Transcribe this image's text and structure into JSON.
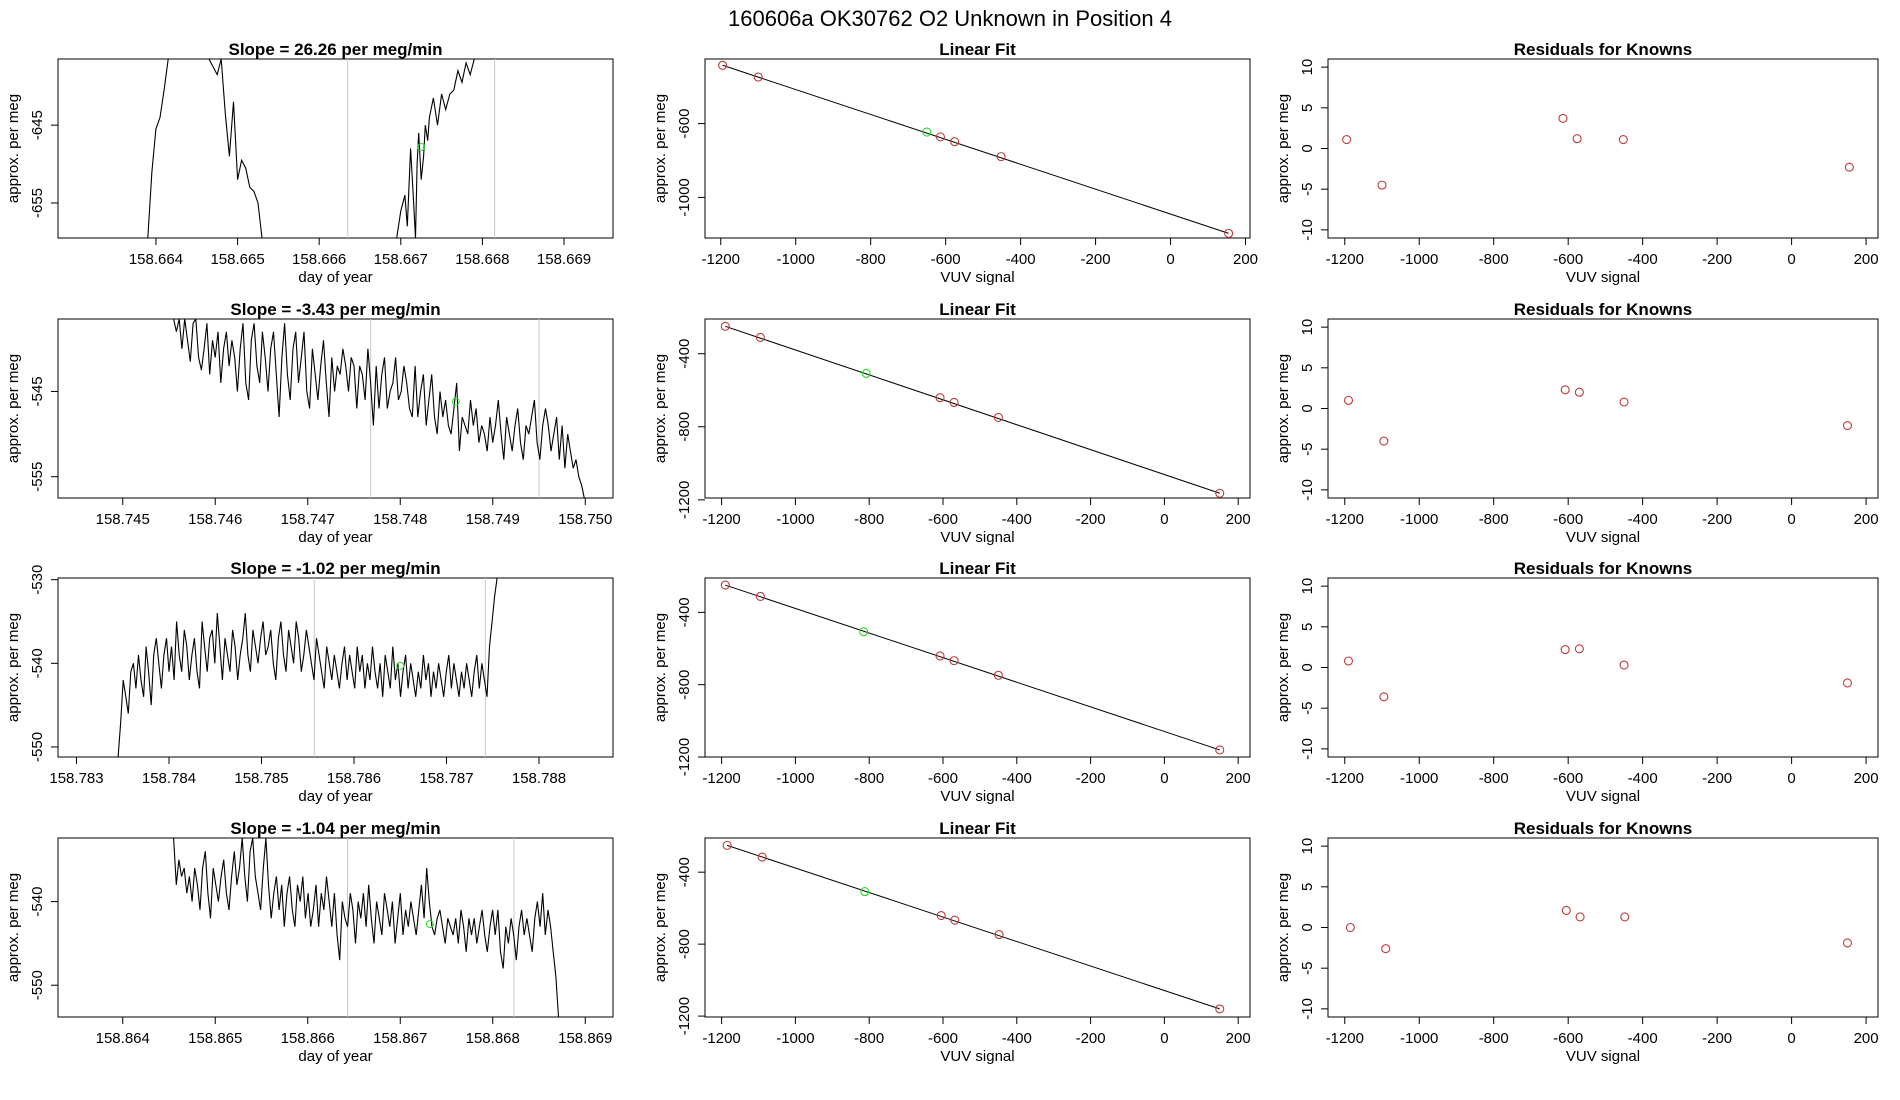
{
  "page_title": "160606a      OK30762    O2 Unknown in Position  4",
  "colors": {
    "known": "#c03a3a",
    "unknown": "#22dd22",
    "line": "#000000",
    "axis": "#000000",
    "marker": "#c8c8c8"
  },
  "chart_data": [
    {
      "type": "line",
      "title": "Slope =  26.26  per meg/min",
      "xlabel": "day of year",
      "ylabel": "approx. per meg",
      "xlim": [
        158.6628,
        158.6696
      ],
      "ylim": [
        -659.5,
        -636.5
      ],
      "xticks": [
        158.664,
        158.665,
        158.666,
        158.667,
        158.668,
        158.669
      ],
      "xtick_labels": [
        "158.664",
        "158.665",
        "158.666",
        "158.667",
        "158.668",
        "158.669"
      ],
      "yticks": [
        -645,
        -655
      ],
      "ytick_labels": [
        "-645",
        "-655"
      ],
      "vlines": [
        158.66635,
        158.66815
      ],
      "unknown_point": {
        "x": 158.66725,
        "y": -647.8
      },
      "x": [
        158.6639,
        158.66395,
        158.664,
        158.66405,
        158.6641,
        158.66415,
        158.6642,
        158.66425,
        158.6643,
        158.6645,
        158.66465,
        158.66475,
        158.6648,
        158.66485,
        158.6649,
        158.66495,
        158.665,
        158.66505,
        158.6651,
        158.66515,
        158.6652,
        158.66525,
        158.6653
      ],
      "y": [
        -659.5,
        -651,
        -645.5,
        -644,
        -640.5,
        -636.5,
        -636.5,
        -636.5,
        -636.5,
        -636.5,
        -636.5,
        -638.5,
        -636.5,
        -643.5,
        -649,
        -642,
        -652,
        -649.5,
        -650.5,
        -653,
        -653.5,
        -655,
        -659.5
      ],
      "x2": [
        158.66695,
        158.667,
        158.66705,
        158.66708,
        158.66712,
        158.66715,
        158.66718,
        158.6672,
        158.66722,
        158.66725,
        158.66728,
        158.6673,
        158.66733,
        158.66735,
        158.6674,
        158.66745,
        158.6675,
        158.66755,
        158.6676,
        158.66765,
        158.6677,
        158.66775,
        158.6678,
        158.66785,
        158.6679,
        158.66795,
        158.668
      ],
      "y2": [
        -659.5,
        -656,
        -654,
        -658,
        -648,
        -653.5,
        -659.5,
        -650,
        -646,
        -652,
        -649,
        -645,
        -647,
        -644,
        -641.5,
        -645,
        -641,
        -643,
        -641,
        -640.5,
        -638,
        -639.5,
        -637,
        -638.5,
        -636.5,
        -636.5,
        -636.5
      ]
    },
    {
      "type": "line",
      "title": "Slope =  -3.43  per meg/min",
      "xlabel": "day of year",
      "ylabel": "approx. per meg",
      "xlim": [
        158.7443,
        158.7503
      ],
      "ylim": [
        -557.5,
        -536.5
      ],
      "xticks": [
        158.745,
        158.746,
        158.747,
        158.748,
        158.749,
        158.75
      ],
      "xtick_labels": [
        "158.745",
        "158.746",
        "158.747",
        "158.748",
        "158.749",
        "158.750"
      ],
      "yticks": [
        -545,
        -555
      ],
      "ytick_labels": [
        "-545",
        "-555"
      ],
      "vlines": [
        158.74768,
        158.7495
      ],
      "unknown_point": {
        "x": 158.7486,
        "y": -546.2
      },
      "x_start": 158.74555,
      "x_step": 3e-05,
      "y": [
        -536.5,
        -538,
        -536.5,
        -540,
        -536.5,
        -539,
        -541.5,
        -537,
        -536.5,
        -541,
        -542.5,
        -540,
        -537,
        -543,
        -539,
        -541,
        -538,
        -544,
        -540,
        -538,
        -542,
        -539,
        -541,
        -545,
        -540,
        -537,
        -544,
        -546,
        -539,
        -537,
        -542,
        -544,
        -538,
        -541,
        -545,
        -540,
        -538,
        -543,
        -548,
        -541,
        -537,
        -543,
        -546,
        -540,
        -538,
        -544,
        -541,
        -538,
        -545,
        -547,
        -540,
        -543,
        -546,
        -542,
        -539,
        -544,
        -548,
        -541,
        -545,
        -542,
        -543,
        -540,
        -542,
        -545,
        -541,
        -542,
        -547,
        -542,
        -543,
        -546,
        -540,
        -544,
        -549,
        -542,
        -547,
        -543,
        -541,
        -547,
        -545,
        -544,
        -541,
        -546,
        -545,
        -542,
        -544,
        -547,
        -548,
        -542,
        -548,
        -545,
        -543,
        -549,
        -546,
        -543,
        -548,
        -550,
        -545,
        -548,
        -546,
        -549,
        -550,
        -547,
        -544,
        -552,
        -548,
        -549,
        -550,
        -546,
        -549,
        -547,
        -551,
        -549,
        -550,
        -552,
        -548,
        -551,
        -549,
        -546,
        -550,
        -553,
        -548,
        -550,
        -552,
        -549,
        -547,
        -551,
        -553,
        -549,
        -550,
        -548,
        -546,
        -551,
        -553,
        -549,
        -547,
        -549,
        -552,
        -550,
        -548,
        -553,
        -549,
        -554,
        -550,
        -552,
        -554,
        -553,
        -555,
        -556,
        -557.5
      ]
    },
    {
      "type": "line",
      "title": "Slope =  -1.02  per meg/min",
      "xlabel": "day of year",
      "ylabel": "approx. per meg",
      "xlim": [
        158.7828,
        158.7888
      ],
      "ylim": [
        -551.2,
        -529.8
      ],
      "xticks": [
        158.783,
        158.784,
        158.785,
        158.786,
        158.787,
        158.788
      ],
      "xtick_labels": [
        "158.783",
        "158.784",
        "158.785",
        "158.786",
        "158.787",
        "158.788"
      ],
      "yticks": [
        -530,
        -540,
        -550
      ],
      "ytick_labels": [
        "-530",
        "-540",
        "-550"
      ],
      "vlines": [
        158.78557,
        158.78742
      ],
      "unknown_point": {
        "x": 158.7865,
        "y": -540.3
      },
      "x_start": 158.78345,
      "x_step": 2.75e-05,
      "y": [
        -551.2,
        -547,
        -542,
        -544,
        -546,
        -541,
        -540,
        -543,
        -539,
        -542,
        -544,
        -538,
        -541,
        -545,
        -539,
        -537,
        -540,
        -543,
        -539,
        -537,
        -541,
        -538,
        -542,
        -535,
        -539,
        -541,
        -536,
        -538,
        -542,
        -539,
        -537,
        -541,
        -543,
        -535,
        -538,
        -541,
        -537,
        -536,
        -540,
        -534,
        -538,
        -542,
        -537,
        -539,
        -541,
        -536,
        -538,
        -542,
        -539,
        -537,
        -534,
        -539,
        -541,
        -536,
        -538,
        -540,
        -537,
        -535,
        -539,
        -538,
        -536,
        -540,
        -542,
        -537,
        -535,
        -539,
        -541,
        -536,
        -538,
        -540,
        -535,
        -537,
        -541,
        -539,
        -536,
        -538,
        -540,
        -542,
        -537,
        -539,
        -541,
        -543,
        -538,
        -540,
        -542,
        -539,
        -541,
        -543,
        -540,
        -538,
        -542,
        -539,
        -541,
        -543,
        -538,
        -541,
        -539,
        -543,
        -540,
        -542,
        -538,
        -541,
        -543,
        -540,
        -544,
        -539,
        -541,
        -543,
        -538,
        -542,
        -540,
        -544,
        -541,
        -539,
        -543,
        -540,
        -542,
        -544,
        -541,
        -543,
        -539,
        -542,
        -540,
        -544,
        -541,
        -543,
        -540,
        -542,
        -544,
        -541,
        -539,
        -543,
        -540,
        -542,
        -544,
        -541,
        -543,
        -540,
        -542,
        -544,
        -541,
        -539,
        -543,
        -540,
        -542,
        -544,
        -538,
        -535,
        -532,
        -529.8
      ]
    },
    {
      "type": "line",
      "title": "Slope =  -1.04  per meg/min",
      "xlabel": "day of year",
      "ylabel": "approx. per meg",
      "xlim": [
        158.8633,
        158.8693
      ],
      "ylim": [
        -553.8,
        -532.4
      ],
      "xticks": [
        158.864,
        158.865,
        158.866,
        158.867,
        158.868,
        158.869
      ],
      "xtick_labels": [
        "158.864",
        "158.865",
        "158.866",
        "158.867",
        "158.868",
        "158.869"
      ],
      "yticks": [
        -540,
        -550
      ],
      "ytick_labels": [
        "-540",
        "-550"
      ],
      "vlines": [
        158.86643,
        158.86823
      ],
      "unknown_point": {
        "x": 158.86732,
        "y": -542.7
      },
      "x_start": 158.86455,
      "x_step": 2.85e-05,
      "y": [
        -532.4,
        -538,
        -535,
        -537,
        -536,
        -539,
        -537,
        -540,
        -536,
        -538,
        -541,
        -536,
        -534,
        -539,
        -542,
        -536,
        -538,
        -540,
        -537,
        -535,
        -539,
        -541,
        -537,
        -534,
        -538,
        -536,
        -532.4,
        -537,
        -540,
        -534,
        -532.4,
        -537,
        -539,
        -541,
        -536,
        -532.4,
        -538,
        -542,
        -539,
        -537,
        -541,
        -538,
        -543,
        -539,
        -537,
        -541,
        -543,
        -538,
        -540,
        -537,
        -542,
        -539,
        -543,
        -541,
        -538,
        -543,
        -539,
        -541,
        -537,
        -540,
        -543,
        -539,
        -544,
        -547,
        -540,
        -542,
        -543,
        -539,
        -541,
        -545,
        -540,
        -542,
        -539,
        -543,
        -538,
        -542,
        -545,
        -540,
        -542,
        -544,
        -539,
        -541,
        -543,
        -540,
        -545,
        -542,
        -539,
        -544,
        -541,
        -543,
        -540,
        -542,
        -544,
        -541,
        -538,
        -542,
        -536,
        -540,
        -543,
        -544,
        -542,
        -541,
        -543,
        -545,
        -542,
        -543,
        -544,
        -542,
        -545,
        -541,
        -543,
        -546,
        -542,
        -544,
        -542,
        -545,
        -543,
        -541,
        -544,
        -546,
        -543,
        -541,
        -544,
        -541,
        -546,
        -548,
        -543,
        -545,
        -542,
        -544,
        -547,
        -543,
        -541,
        -544,
        -542,
        -544,
        -546,
        -542,
        -540,
        -543,
        -539,
        -544,
        -541,
        -543,
        -546,
        -549,
        -553.8
      ]
    },
    {
      "type": "scatter",
      "title": "Linear Fit",
      "xlabel": "VUV signal",
      "ylabel": "approx. per meg",
      "xlim": [
        -1242,
        212
      ],
      "ylim": [
        -1220,
        -250
      ],
      "xticks": [
        -1200,
        -1000,
        -800,
        -600,
        -400,
        -200,
        0,
        200
      ],
      "xtick_labels": [
        "-1200",
        "-1000",
        "-800",
        "-600",
        "-400",
        "-200",
        "0",
        "200"
      ],
      "yticks": [
        -600,
        -1000
      ],
      "ytick_labels": [
        "-600",
        "-1000"
      ],
      "fit_line": {
        "x": [
          -1195,
          155
        ],
        "y": [
          -284,
          -1195
        ]
      },
      "known_x": [
        -1195,
        -1100,
        -614,
        -576,
        -452,
        155
      ],
      "known_y": [
        -284,
        -348,
        -672,
        -698,
        -779,
        -1195
      ],
      "unknown": {
        "x": -650,
        "y": -646
      }
    },
    {
      "type": "scatter",
      "title": "Linear Fit",
      "xlabel": "VUV signal",
      "ylabel": "approx. per meg",
      "xlim": [
        -1245,
        232
      ],
      "ylim": [
        -1190,
        -210
      ],
      "xticks": [
        -1200,
        -1000,
        -800,
        -600,
        -400,
        -200,
        0,
        200
      ],
      "xtick_labels": [
        "-1200",
        "-1000",
        "-800",
        "-600",
        "-400",
        "-200",
        "0",
        "200"
      ],
      "yticks": [
        -400,
        -800,
        -1200
      ],
      "ytick_labels": [
        "-400",
        "-800",
        "-1200"
      ],
      "fit_line": {
        "x": [
          -1190,
          150
        ],
        "y": [
          -250,
          -1164
        ]
      },
      "known_x": [
        -1190,
        -1095,
        -608,
        -570,
        -450,
        150
      ],
      "known_y": [
        -250,
        -311,
        -641,
        -667,
        -749,
        -1164
      ],
      "unknown": {
        "x": -808,
        "y": -508
      }
    },
    {
      "type": "scatter",
      "title": "Linear Fit",
      "xlabel": "VUV signal",
      "ylabel": "approx. per meg",
      "xlim": [
        -1245,
        232
      ],
      "ylim": [
        -1200,
        -210
      ],
      "xticks": [
        -1200,
        -1000,
        -800,
        -600,
        -400,
        -200,
        0,
        200
      ],
      "xtick_labels": [
        "-1200",
        "-1000",
        "-800",
        "-600",
        "-400",
        "-200",
        "0",
        "200"
      ],
      "yticks": [
        -400,
        -800,
        -1200
      ],
      "ytick_labels": [
        "-400",
        "-800",
        "-1200"
      ],
      "fit_line": {
        "x": [
          -1190,
          150
        ],
        "y": [
          -249,
          -1161
        ]
      },
      "known_x": [
        -1190,
        -1095,
        -608,
        -570,
        -450,
        150
      ],
      "known_y": [
        -249,
        -312,
        -641,
        -667,
        -748,
        -1161
      ],
      "unknown": {
        "x": -815,
        "y": -507
      }
    },
    {
      "type": "scatter",
      "title": "Linear Fit",
      "xlabel": "VUV signal",
      "ylabel": "approx. per meg",
      "xlim": [
        -1245,
        232
      ],
      "ylim": [
        -1205,
        -210
      ],
      "xticks": [
        -1200,
        -1000,
        -800,
        -600,
        -400,
        -200,
        0,
        200
      ],
      "xtick_labels": [
        "-1200",
        "-1000",
        "-800",
        "-600",
        "-400",
        "-200",
        "0",
        "200"
      ],
      "yticks": [
        -400,
        -800,
        -1200
      ],
      "ytick_labels": [
        "-400",
        "-800",
        "-1200"
      ],
      "fit_line": {
        "x": [
          -1185,
          150
        ],
        "y": [
          -251,
          -1160
        ]
      },
      "known_x": [
        -1185,
        -1090,
        -605,
        -568,
        -448,
        150
      ],
      "known_y": [
        -251,
        -316,
        -641,
        -667,
        -747,
        -1160
      ],
      "unknown": {
        "x": -812,
        "y": -508
      }
    },
    {
      "type": "scatter",
      "title": "Residuals for Knowns",
      "xlabel": "VUV signal",
      "ylabel": "approx. per meg",
      "xlim": [
        -1245,
        232
      ],
      "ylim": [
        -11,
        11
      ],
      "xticks": [
        -1200,
        -1000,
        -800,
        -600,
        -400,
        -200,
        0,
        200
      ],
      "xtick_labels": [
        "-1200",
        "-1000",
        "-800",
        "-600",
        "-400",
        "-200",
        "0",
        "200"
      ],
      "yticks": [
        10,
        5,
        0,
        -5,
        -10
      ],
      "ytick_labels": [
        "10",
        "5",
        "0",
        "-5",
        "-10"
      ],
      "known_x": [
        -1195,
        -1100,
        -614,
        -576,
        -452,
        155
      ],
      "known_y": [
        1.1,
        -4.5,
        3.7,
        1.2,
        1.1,
        -2.3
      ]
    },
    {
      "type": "scatter",
      "title": "Residuals for Knowns",
      "xlabel": "VUV signal",
      "ylabel": "approx. per meg",
      "xlim": [
        -1245,
        232
      ],
      "ylim": [
        -11,
        11
      ],
      "xticks": [
        -1200,
        -1000,
        -800,
        -600,
        -400,
        -200,
        0,
        200
      ],
      "xtick_labels": [
        "-1200",
        "-1000",
        "-800",
        "-600",
        "-400",
        "-200",
        "0",
        "200"
      ],
      "yticks": [
        10,
        5,
        0,
        -5,
        -10
      ],
      "ytick_labels": [
        "10",
        "5",
        "0",
        "-5",
        "-10"
      ],
      "known_x": [
        -1190,
        -1095,
        -608,
        -570,
        -450,
        150
      ],
      "known_y": [
        1.0,
        -4.0,
        2.3,
        2.0,
        0.8,
        -2.1
      ]
    },
    {
      "type": "scatter",
      "title": "Residuals for Knowns",
      "xlabel": "VUV signal",
      "ylabel": "approx. per meg",
      "xlim": [
        -1245,
        232
      ],
      "ylim": [
        -11,
        11
      ],
      "xticks": [
        -1200,
        -1000,
        -800,
        -600,
        -400,
        -200,
        0,
        200
      ],
      "xtick_labels": [
        "-1200",
        "-1000",
        "-800",
        "-600",
        "-400",
        "-200",
        "0",
        "200"
      ],
      "yticks": [
        10,
        5,
        0,
        -5,
        -10
      ],
      "ytick_labels": [
        "10",
        "5",
        "0",
        "-5",
        "-10"
      ],
      "known_x": [
        -1190,
        -1095,
        -608,
        -570,
        -450,
        150
      ],
      "known_y": [
        0.8,
        -3.6,
        2.2,
        2.3,
        0.3,
        -1.9
      ]
    },
    {
      "type": "scatter",
      "title": "Residuals for Knowns",
      "xlabel": "VUV signal",
      "ylabel": "approx. per meg",
      "xlim": [
        -1245,
        232
      ],
      "ylim": [
        -11,
        11
      ],
      "xticks": [
        -1200,
        -1000,
        -800,
        -600,
        -400,
        -200,
        0,
        200
      ],
      "xtick_labels": [
        "-1200",
        "-1000",
        "-800",
        "-600",
        "-400",
        "-200",
        "0",
        "200"
      ],
      "yticks": [
        10,
        5,
        0,
        -5,
        -10
      ],
      "ytick_labels": [
        "10",
        "5",
        "0",
        "-5",
        "-10"
      ],
      "known_x": [
        -1185,
        -1090,
        -605,
        -568,
        -448,
        150
      ],
      "known_y": [
        0.0,
        -2.6,
        2.1,
        1.3,
        1.3,
        -1.9
      ]
    }
  ]
}
